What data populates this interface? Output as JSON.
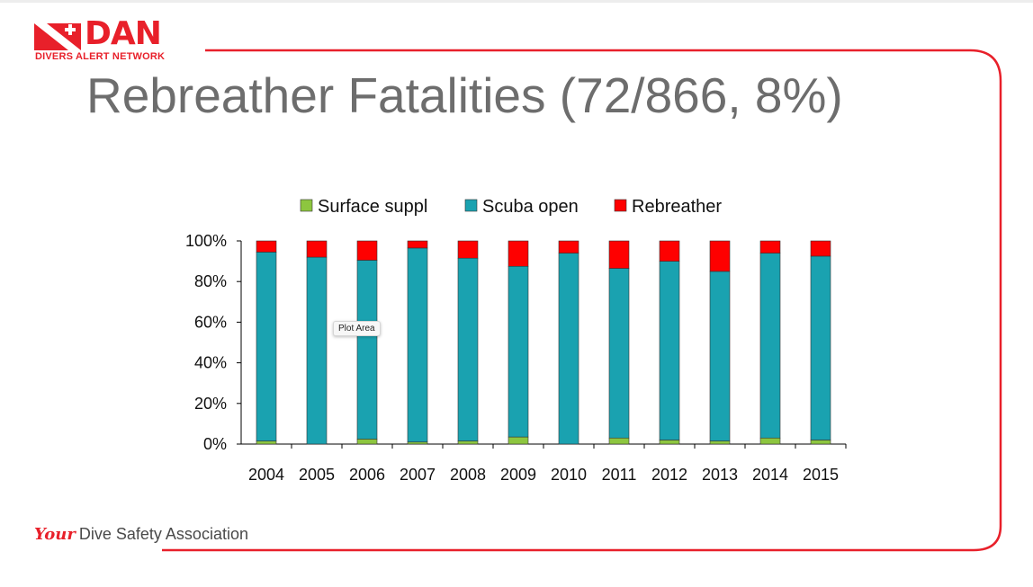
{
  "logo": {
    "name": "DAN",
    "subtitle": "DIVERS ALERT NETWORK"
  },
  "slide": {
    "title": "Rebreather Fatalities (72/866, 8%)"
  },
  "footer": {
    "script": "Your",
    "text": "Dive Safety Association"
  },
  "tooltip": {
    "label": "Plot Area"
  },
  "colors": {
    "surface": "#8dc63f",
    "scuba": "#1aa2b0",
    "rebreather": "#fe0000",
    "brand_red": "#e8202a",
    "title_gray": "#6d6d6d"
  },
  "chart_data": {
    "type": "bar",
    "stacked": "percent",
    "categories": [
      "2004",
      "2005",
      "2006",
      "2007",
      "2008",
      "2009",
      "2010",
      "2011",
      "2012",
      "2013",
      "2014",
      "2015"
    ],
    "series": [
      {
        "name": "Surface suppl",
        "values": [
          1.5,
          0,
          2.5,
          1,
          1.5,
          3.5,
          0,
          3,
          2,
          1.5,
          3,
          2
        ]
      },
      {
        "name": "Scuba open",
        "values": [
          93,
          92,
          88,
          95.5,
          90,
          84,
          94,
          83.5,
          88,
          83.5,
          91,
          90.5
        ]
      },
      {
        "name": "Rebreather",
        "values": [
          5.5,
          8,
          9.5,
          3.5,
          8.5,
          12.5,
          6,
          13.5,
          10,
          15,
          6,
          7.5
        ]
      }
    ],
    "yticks": [
      "0%",
      "20%",
      "40%",
      "60%",
      "80%",
      "100%"
    ],
    "ylim": [
      0,
      100
    ],
    "legend": "top",
    "grid": false
  }
}
